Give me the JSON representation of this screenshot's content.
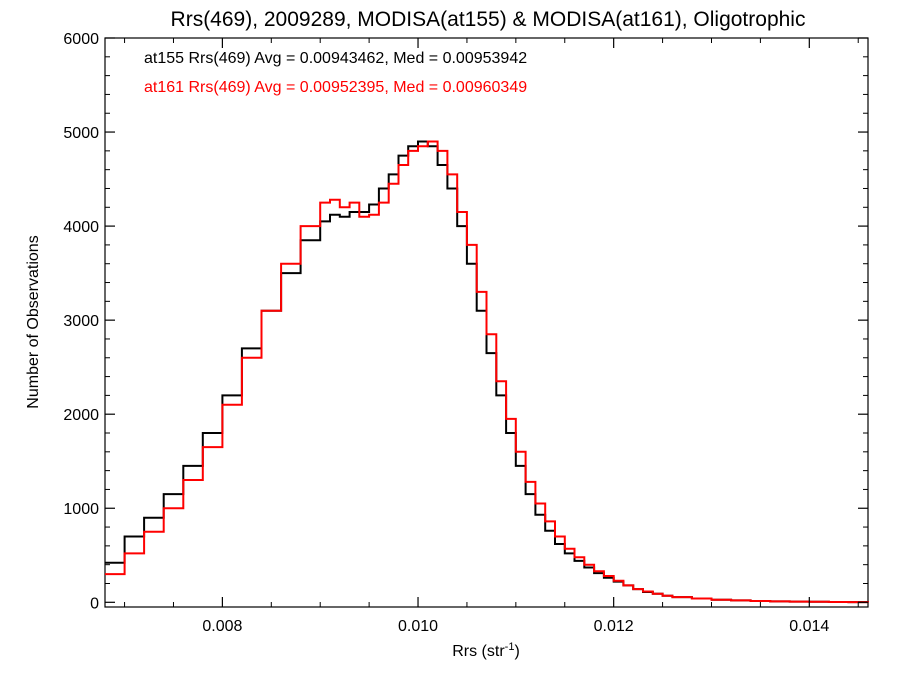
{
  "chart_data": {
    "type": "line",
    "step": true,
    "title": "Rrs(469), 2009289, MODISA(at155) & MODISA(at161), Oligotrophic",
    "xlabel": "Rrs (str",
    "xlabel_sup": "-1",
    "xlabel_end": ")",
    "ylabel": "Number of Observations",
    "xlim": [
      0.0068,
      0.0146
    ],
    "ylim": [
      -50,
      6000
    ],
    "x_ticks": [
      0.008,
      0.01,
      0.012,
      0.014
    ],
    "x_tick_labels": [
      "0.008",
      "0.010",
      "0.012",
      "0.014"
    ],
    "y_ticks": [
      0,
      1000,
      2000,
      3000,
      4000,
      5000,
      6000
    ],
    "y_tick_labels": [
      "0",
      "1000",
      "2000",
      "3000",
      "4000",
      "5000",
      "6000"
    ],
    "grid": false,
    "series": [
      {
        "name": "at155",
        "color": "#000000",
        "annotation": "at155 Rrs(469) Avg = 0.00943462, Med = 0.00953942",
        "x": [
          0.0068,
          0.007,
          0.0072,
          0.0074,
          0.0076,
          0.0078,
          0.008,
          0.0082,
          0.0084,
          0.0086,
          0.0088,
          0.009,
          0.0091,
          0.0092,
          0.0093,
          0.0094,
          0.0095,
          0.0096,
          0.0097,
          0.0098,
          0.0099,
          0.01,
          0.0101,
          0.0102,
          0.0103,
          0.0104,
          0.0105,
          0.0106,
          0.0107,
          0.0108,
          0.0109,
          0.011,
          0.0111,
          0.0112,
          0.0113,
          0.0114,
          0.0115,
          0.0116,
          0.0117,
          0.0118,
          0.0119,
          0.012,
          0.0121,
          0.0122,
          0.0123,
          0.0124,
          0.0125,
          0.0126,
          0.0128,
          0.013,
          0.0132,
          0.0134,
          0.0136,
          0.0138,
          0.014,
          0.0142,
          0.0144,
          0.0146
        ],
        "y": [
          420,
          700,
          900,
          1150,
          1450,
          1800,
          2200,
          2700,
          3100,
          3500,
          3850,
          4050,
          4120,
          4100,
          4150,
          4150,
          4230,
          4400,
          4550,
          4750,
          4850,
          4900,
          4850,
          4650,
          4400,
          4000,
          3600,
          3100,
          2650,
          2200,
          1800,
          1450,
          1150,
          930,
          760,
          620,
          520,
          440,
          370,
          310,
          260,
          220,
          180,
          140,
          110,
          90,
          70,
          55,
          40,
          28,
          20,
          14,
          10,
          7,
          5,
          3,
          2,
          1
        ]
      },
      {
        "name": "at161",
        "color": "#ff0000",
        "annotation": "at161 Rrs(469) Avg = 0.00952395, Med = 0.00960349",
        "x": [
          0.0068,
          0.007,
          0.0072,
          0.0074,
          0.0076,
          0.0078,
          0.008,
          0.0082,
          0.0084,
          0.0086,
          0.0088,
          0.009,
          0.0091,
          0.0092,
          0.0093,
          0.0094,
          0.0095,
          0.0096,
          0.0097,
          0.0098,
          0.0099,
          0.01,
          0.0101,
          0.0102,
          0.0103,
          0.0104,
          0.0105,
          0.0106,
          0.0107,
          0.0108,
          0.0109,
          0.011,
          0.0111,
          0.0112,
          0.0113,
          0.0114,
          0.0115,
          0.0116,
          0.0117,
          0.0118,
          0.0119,
          0.012,
          0.0121,
          0.0122,
          0.0123,
          0.0124,
          0.0125,
          0.0126,
          0.0128,
          0.013,
          0.0132,
          0.0134,
          0.0136,
          0.0138,
          0.014,
          0.0142,
          0.0144,
          0.0146
        ],
        "y": [
          300,
          520,
          750,
          1000,
          1300,
          1650,
          2100,
          2600,
          3100,
          3600,
          4000,
          4250,
          4280,
          4200,
          4250,
          4100,
          4120,
          4250,
          4450,
          4650,
          4800,
          4850,
          4900,
          4800,
          4550,
          4150,
          3800,
          3300,
          2850,
          2350,
          1950,
          1600,
          1280,
          1050,
          860,
          700,
          570,
          480,
          400,
          330,
          280,
          230,
          180,
          140,
          115,
          90,
          70,
          55,
          40,
          28,
          20,
          14,
          10,
          7,
          5,
          3,
          2,
          1
        ]
      }
    ]
  }
}
